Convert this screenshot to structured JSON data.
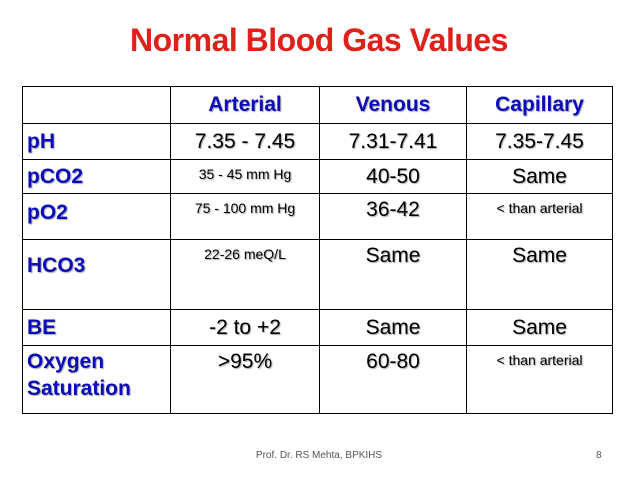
{
  "slide": {
    "title": "Normal Blood Gas Values",
    "footer": "Prof. Dr. RS Mehta, BPKIHS",
    "page_number": "8"
  },
  "table": {
    "headers": [
      "",
      "Arterial",
      "Venous",
      "Capillary"
    ],
    "rows": [
      {
        "label": "pH",
        "label_line2": "",
        "arterial": "7.35 - 7.45",
        "venous": "7.31-7.41",
        "capillary": "7.35-7.45"
      },
      {
        "label": "pCO2",
        "label_line2": "",
        "arterial": "35 - 45 mm Hg",
        "venous": "40-50",
        "capillary": "Same"
      },
      {
        "label": "pO2",
        "label_line2": "",
        "arterial": "75 - 100 mm Hg",
        "venous": "36-42",
        "capillary": "< than arterial"
      },
      {
        "label": "HCO3",
        "label_line2": "",
        "arterial": "22-26 meQ/L",
        "venous": "Same",
        "capillary": "Same"
      },
      {
        "label": "BE",
        "label_line2": "",
        "arterial": "-2 to +2",
        "venous": "Same",
        "capillary": "Same"
      },
      {
        "label": "Oxygen",
        "label_line2": "Saturation",
        "arterial": ">95%",
        "venous": "60-80",
        "capillary": "< than arterial"
      }
    ]
  }
}
